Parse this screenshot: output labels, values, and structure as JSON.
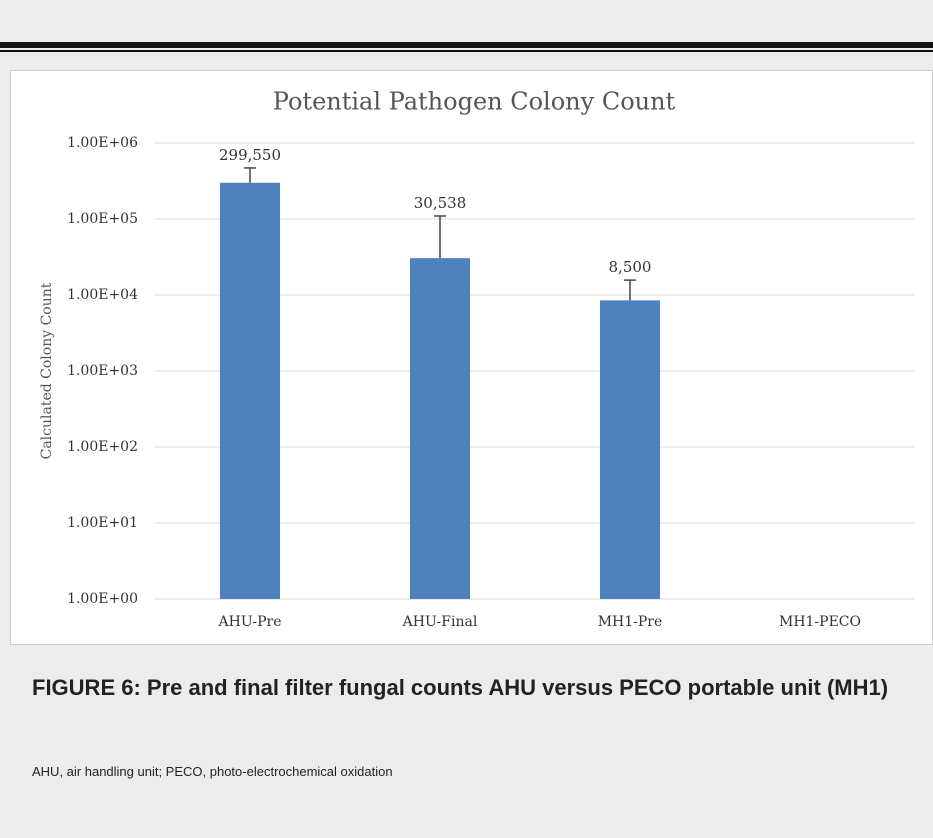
{
  "chart_data": {
    "type": "bar",
    "title": "Potential Pathogen Colony Count",
    "y_label": "Calculated Colony Count",
    "categories": [
      "AHU-Pre",
      "AHU-Final",
      "MH1-Pre",
      "MH1-PECO"
    ],
    "values": [
      299550,
      30538,
      8500,
      null
    ],
    "value_labels": [
      "299,550",
      "30,538",
      "8,500",
      null
    ],
    "errors": [
      170000,
      79000,
      7200,
      null
    ],
    "color": "#4f81bd",
    "yscale": "log",
    "ylim": [
      1,
      1000000
    ],
    "yticks": [
      {
        "value": 1,
        "label": "1.00E+00"
      },
      {
        "value": 10,
        "label": "1.00E+01"
      },
      {
        "value": 100,
        "label": "1.00E+02"
      },
      {
        "value": 1000,
        "label": "1.00E+03"
      },
      {
        "value": 10000,
        "label": "1.00E+04"
      },
      {
        "value": 100000,
        "label": "1.00E+05"
      },
      {
        "value": 1000000,
        "label": "1.00E+06"
      }
    ],
    "grid": true
  },
  "caption": {
    "title": "FIGURE 6: Pre and final filter fungal counts AHU versus PECO portable unit (MH1)",
    "text": "AHU, air handling unit; PECO, photo-electrochemical oxidation"
  }
}
